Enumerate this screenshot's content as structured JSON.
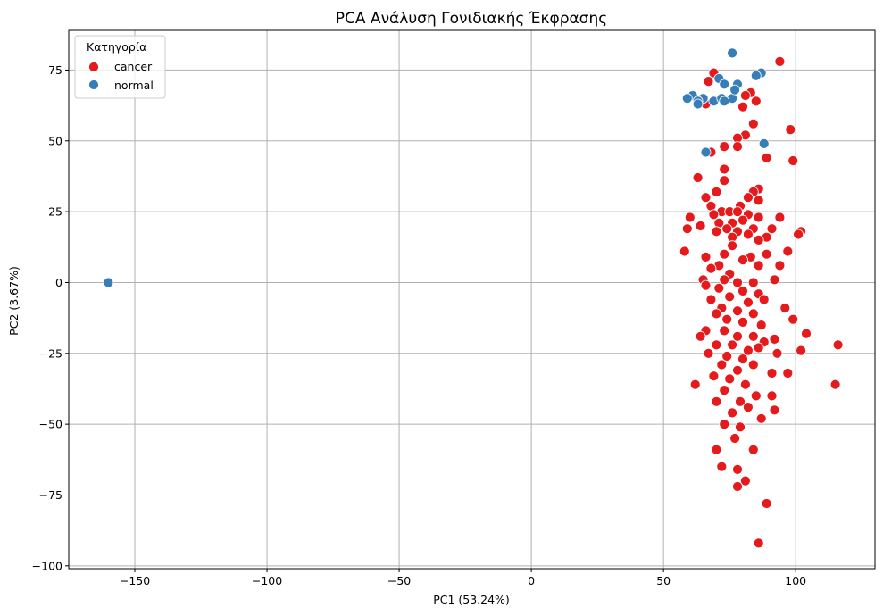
{
  "chart_data": {
    "type": "scatter",
    "title": "PCA Ανάλυση Γονιδιακής Έκφρασης",
    "xlabel": "PC1 (53.24%)",
    "ylabel": "PC2 (3.67%)",
    "xlim": [
      -175,
      130
    ],
    "ylim": [
      -101,
      89
    ],
    "xticks": [
      -150,
      -100,
      -50,
      0,
      50,
      100
    ],
    "xtick_labels": [
      "−150",
      "−100",
      "−50",
      "0",
      "50",
      "100"
    ],
    "yticks": [
      -100,
      -75,
      -50,
      -25,
      0,
      25,
      50,
      75
    ],
    "ytick_labels": [
      "−100",
      "−75",
      "−50",
      "−25",
      "0",
      "25",
      "50",
      "75"
    ],
    "grid": true,
    "legend": {
      "title": "Κατηγορία",
      "position": "top-left"
    },
    "series": [
      {
        "name": "cancer",
        "color": "#e41a1c",
        "points": [
          [
            94,
            78
          ],
          [
            69,
            74
          ],
          [
            67,
            71
          ],
          [
            83,
            67
          ],
          [
            81,
            66
          ],
          [
            85,
            64
          ],
          [
            80,
            62
          ],
          [
            66,
            63
          ],
          [
            84,
            56
          ],
          [
            98,
            54
          ],
          [
            81,
            52
          ],
          [
            78,
            51
          ],
          [
            73,
            48
          ],
          [
            78,
            48
          ],
          [
            68,
            46
          ],
          [
            99,
            43
          ],
          [
            89,
            44
          ],
          [
            73,
            40
          ],
          [
            73,
            36
          ],
          [
            63,
            37
          ],
          [
            86,
            33
          ],
          [
            70,
            32
          ],
          [
            84,
            32
          ],
          [
            82,
            30
          ],
          [
            66,
            30
          ],
          [
            86,
            29
          ],
          [
            68,
            27
          ],
          [
            79,
            27
          ],
          [
            72,
            25
          ],
          [
            75,
            25
          ],
          [
            78,
            25
          ],
          [
            69,
            24
          ],
          [
            82,
            24
          ],
          [
            86,
            23
          ],
          [
            94,
            23
          ],
          [
            60,
            23
          ],
          [
            71,
            21
          ],
          [
            76,
            21
          ],
          [
            80,
            22
          ],
          [
            64,
            20
          ],
          [
            74,
            19
          ],
          [
            84,
            19
          ],
          [
            91,
            19
          ],
          [
            59,
            19
          ],
          [
            70,
            18
          ],
          [
            78,
            18
          ],
          [
            82,
            17
          ],
          [
            89,
            16
          ],
          [
            76,
            16
          ],
          [
            86,
            15
          ],
          [
            102,
            18
          ],
          [
            101,
            17
          ],
          [
            97,
            11
          ],
          [
            76,
            13
          ],
          [
            73,
            10
          ],
          [
            83,
            9
          ],
          [
            89,
            10
          ],
          [
            58,
            11
          ],
          [
            66,
            9
          ],
          [
            80,
            8
          ],
          [
            86,
            6
          ],
          [
            94,
            6
          ],
          [
            71,
            6
          ],
          [
            68,
            5
          ],
          [
            92,
            1
          ],
          [
            75,
            3
          ],
          [
            65,
            1
          ],
          [
            73,
            1
          ],
          [
            84,
            0
          ],
          [
            78,
            0
          ],
          [
            66,
            -1
          ],
          [
            71,
            -2
          ],
          [
            80,
            -3
          ],
          [
            86,
            -4
          ],
          [
            68,
            -6
          ],
          [
            75,
            -5
          ],
          [
            82,
            -7
          ],
          [
            88,
            -6
          ],
          [
            72,
            -9
          ],
          [
            96,
            -9
          ],
          [
            78,
            -10
          ],
          [
            84,
            -11
          ],
          [
            70,
            -11
          ],
          [
            74,
            -13
          ],
          [
            80,
            -14
          ],
          [
            87,
            -15
          ],
          [
            66,
            -17
          ],
          [
            99,
            -13
          ],
          [
            104,
            -18
          ],
          [
            73,
            -17
          ],
          [
            78,
            -19
          ],
          [
            84,
            -19
          ],
          [
            92,
            -20
          ],
          [
            64,
            -19
          ],
          [
            70,
            -22
          ],
          [
            76,
            -22
          ],
          [
            82,
            -24
          ],
          [
            88,
            -21
          ],
          [
            67,
            -25
          ],
          [
            74,
            -26
          ],
          [
            80,
            -27
          ],
          [
            86,
            -23
          ],
          [
            93,
            -25
          ],
          [
            102,
            -24
          ],
          [
            116,
            -22
          ],
          [
            72,
            -29
          ],
          [
            78,
            -31
          ],
          [
            84,
            -29
          ],
          [
            69,
            -33
          ],
          [
            75,
            -34
          ],
          [
            81,
            -36
          ],
          [
            91,
            -32
          ],
          [
            97,
            -32
          ],
          [
            62,
            -36
          ],
          [
            73,
            -38
          ],
          [
            79,
            -42
          ],
          [
            85,
            -40
          ],
          [
            91,
            -40
          ],
          [
            115,
            -36
          ],
          [
            70,
            -42
          ],
          [
            76,
            -46
          ],
          [
            82,
            -44
          ],
          [
            92,
            -45
          ],
          [
            87,
            -48
          ],
          [
            79,
            -51
          ],
          [
            73,
            -50
          ],
          [
            77,
            -55
          ],
          [
            70,
            -59
          ],
          [
            84,
            -59
          ],
          [
            72,
            -65
          ],
          [
            78,
            -66
          ],
          [
            81,
            -70
          ],
          [
            78,
            -72
          ],
          [
            89,
            -78
          ],
          [
            86,
            -92
          ]
        ]
      },
      {
        "name": "normal",
        "color": "#377eb8",
        "points": [
          [
            76,
            81
          ],
          [
            71,
            72
          ],
          [
            73,
            70
          ],
          [
            78,
            70
          ],
          [
            87,
            74
          ],
          [
            85,
            73
          ],
          [
            61,
            66
          ],
          [
            65,
            65
          ],
          [
            59,
            65
          ],
          [
            69,
            64
          ],
          [
            72,
            65
          ],
          [
            76,
            65
          ],
          [
            77,
            68
          ],
          [
            63,
            64
          ],
          [
            63,
            63
          ],
          [
            73,
            64
          ],
          [
            88,
            49
          ],
          [
            66,
            46
          ],
          [
            -160,
            0
          ]
        ]
      }
    ]
  }
}
